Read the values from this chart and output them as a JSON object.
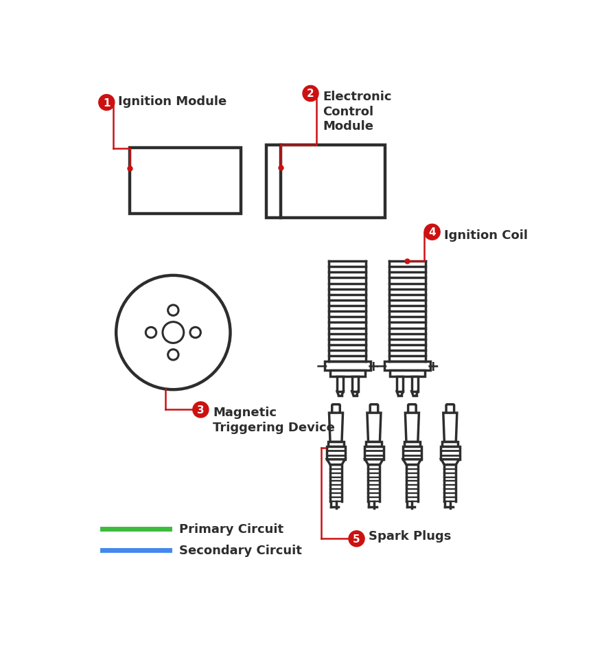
{
  "bg_color": "#ffffff",
  "dark_color": "#2d2d2d",
  "red_color": "#cc1111",
  "green_color": "#3dbb3d",
  "blue_color": "#4488ee",
  "label1": "Ignition Module",
  "label2": "Electronic\nControl\nModule",
  "label3": "Magnetic\nTriggering Device",
  "label4": "Ignition Coil",
  "label5": "Spark Plugs",
  "legend1": "Primary Circuit",
  "legend2": "Secondary Circuit"
}
